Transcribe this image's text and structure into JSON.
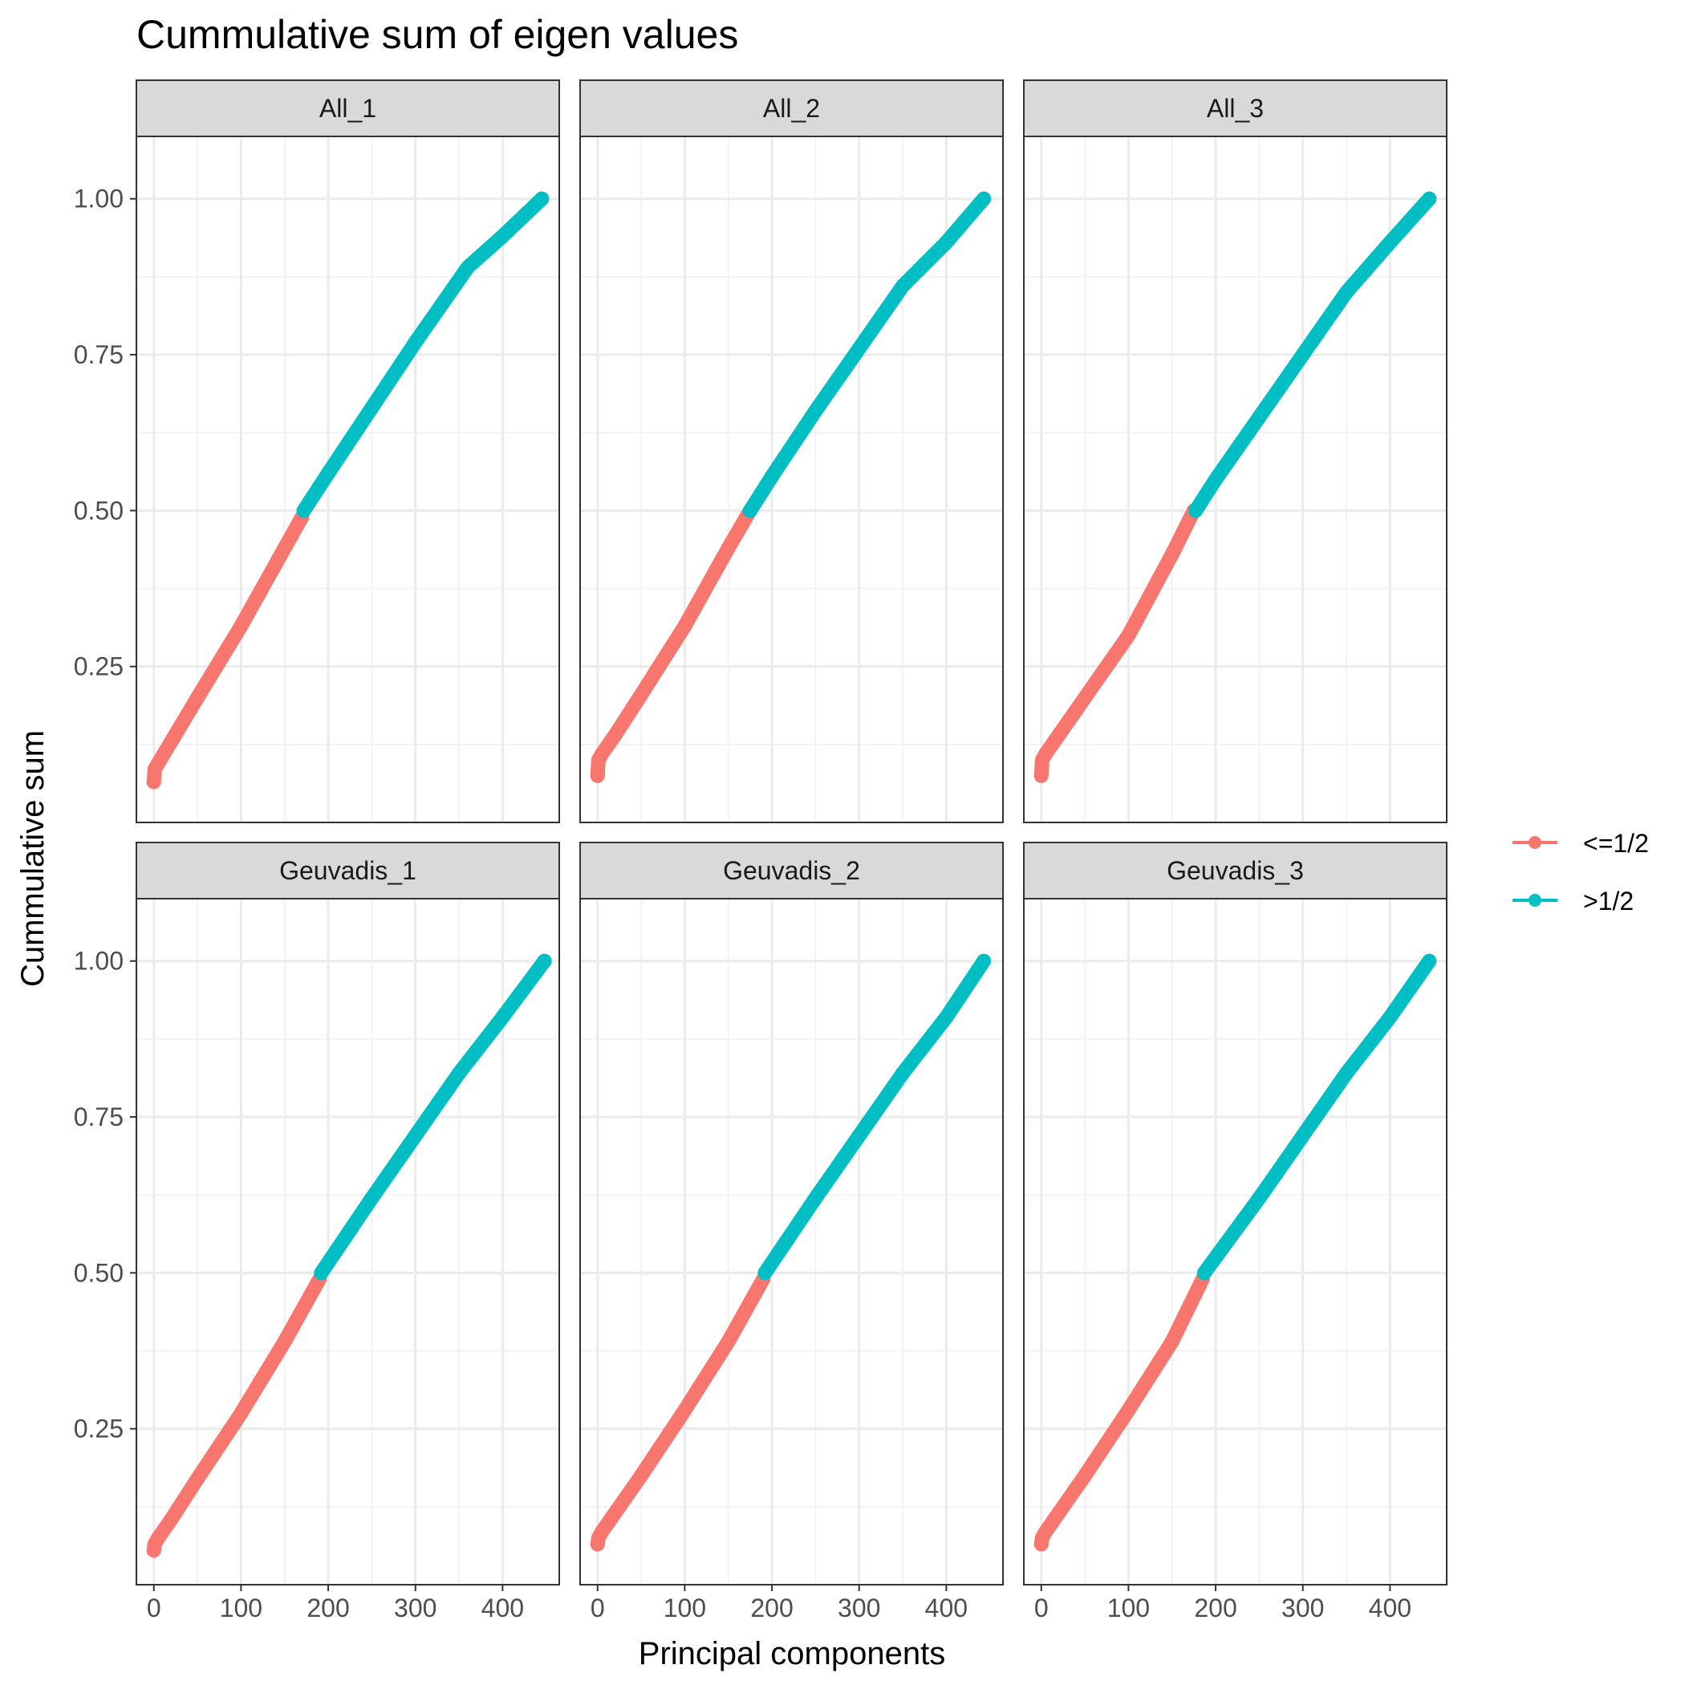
{
  "chart_data": {
    "type": "scatter",
    "title": "Cummulative sum of eigen values",
    "xlabel": "Principal components",
    "ylabel": "Cummulative sum",
    "xlim": [
      -20,
      465
    ],
    "ylim": [
      0.0,
      1.1
    ],
    "x_ticks": [
      0,
      100,
      200,
      300,
      400
    ],
    "x_tick_labels": [
      "0",
      "100",
      "200",
      "300",
      "400"
    ],
    "y_ticks": [
      0.25,
      0.5,
      0.75,
      1.0
    ],
    "y_tick_labels": [
      "0.25",
      "0.50",
      "0.75",
      "1.00"
    ],
    "grid": true,
    "legend": {
      "position": "right",
      "entries": [
        {
          "label": "<=1/2",
          "color": "#F8766D"
        },
        {
          "label": ">1/2",
          "color": "#00BFC4"
        }
      ]
    },
    "panels": [
      {
        "label": "All_1",
        "series": [
          {
            "name": "<=1/2",
            "x": [
              0,
              1,
              5,
              20,
              50,
              100,
              150,
              170
            ],
            "y": [
              0.065,
              0.085,
              0.095,
              0.13,
              0.2,
              0.315,
              0.44,
              0.49
            ]
          },
          {
            "name": ">1/2",
            "x": [
              172,
              200,
              250,
              300,
              360,
              400,
              445
            ],
            "y": [
              0.5,
              0.56,
              0.665,
              0.77,
              0.89,
              0.94,
              1.0
            ]
          }
        ]
      },
      {
        "label": "All_2",
        "series": [
          {
            "name": "<=1/2",
            "x": [
              0,
              1,
              5,
              20,
              50,
              100,
              150,
              175
            ],
            "y": [
              0.075,
              0.1,
              0.11,
              0.14,
              0.205,
              0.315,
              0.44,
              0.5
            ]
          },
          {
            "name": ">1/2",
            "x": [
              175,
              200,
              250,
              300,
              350,
              400,
              443
            ],
            "y": [
              0.5,
              0.555,
              0.66,
              0.76,
              0.86,
              0.93,
              1.0
            ]
          }
        ]
      },
      {
        "label": "All_3",
        "series": [
          {
            "name": "<=1/2",
            "x": [
              0,
              1,
              5,
              20,
              50,
              100,
              150,
              175
            ],
            "y": [
              0.075,
              0.1,
              0.11,
              0.14,
              0.2,
              0.3,
              0.43,
              0.5
            ]
          },
          {
            "name": ">1/2",
            "x": [
              177,
              200,
              250,
              300,
              350,
              400,
              445
            ],
            "y": [
              0.5,
              0.55,
              0.65,
              0.75,
              0.85,
              0.93,
              1.0
            ]
          }
        ]
      },
      {
        "label": "Geuvadis_1",
        "series": [
          {
            "name": "<=1/2",
            "x": [
              0,
              1,
              5,
              20,
              50,
              100,
              150,
              190
            ],
            "y": [
              0.055,
              0.065,
              0.075,
              0.105,
              0.17,
              0.275,
              0.39,
              0.49
            ]
          },
          {
            "name": ">1/2",
            "x": [
              192,
              250,
              300,
              350,
              400,
              448
            ],
            "y": [
              0.5,
              0.62,
              0.72,
              0.82,
              0.91,
              1.0
            ]
          }
        ]
      },
      {
        "label": "Geuvadis_2",
        "series": [
          {
            "name": "<=1/2",
            "x": [
              0,
              1,
              5,
              20,
              50,
              100,
              150,
              190
            ],
            "y": [
              0.065,
              0.075,
              0.085,
              0.115,
              0.175,
              0.28,
              0.39,
              0.49
            ]
          },
          {
            "name": ">1/2",
            "x": [
              192,
              250,
              300,
              350,
              400,
              443
            ],
            "y": [
              0.5,
              0.62,
              0.72,
              0.82,
              0.91,
              1.0
            ]
          }
        ]
      },
      {
        "label": "Geuvadis_3",
        "series": [
          {
            "name": "<=1/2",
            "x": [
              0,
              1,
              5,
              20,
              50,
              100,
              150,
              185
            ],
            "y": [
              0.065,
              0.075,
              0.085,
              0.115,
              0.175,
              0.28,
              0.39,
              0.49
            ]
          },
          {
            "name": ">1/2",
            "x": [
              187,
              250,
              300,
              350,
              400,
              445
            ],
            "y": [
              0.5,
              0.62,
              0.72,
              0.82,
              0.91,
              1.0
            ]
          }
        ]
      }
    ]
  }
}
